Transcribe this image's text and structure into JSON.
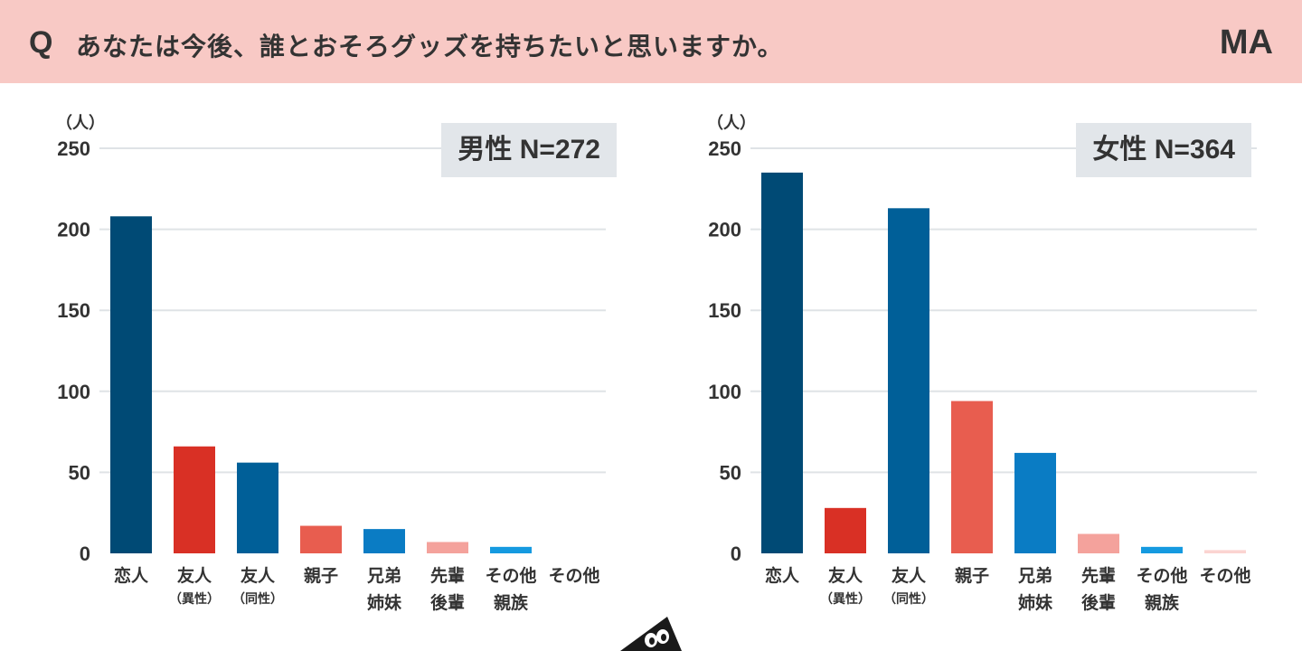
{
  "header": {
    "q_mark": "Q",
    "question": "あなたは今後、誰とおそろグッズを持ちたいと思いますか。",
    "answer_type": "MA"
  },
  "chart_data": [
    {
      "type": "bar",
      "title": "男性 N=272",
      "unit_label": "（人）",
      "categories": [
        {
          "line1": "恋人",
          "line2": ""
        },
        {
          "line1": "友人",
          "line2": "（異性）"
        },
        {
          "line1": "友人",
          "line2": "（同性）"
        },
        {
          "line1": "親子",
          "line2": ""
        },
        {
          "line1": "兄弟",
          "line2": "姉妹"
        },
        {
          "line1": "先輩",
          "line2": "後輩"
        },
        {
          "line1": "その他",
          "line2": "親族"
        },
        {
          "line1": "その他",
          "line2": ""
        }
      ],
      "values": [
        208,
        66,
        56,
        17,
        15,
        7,
        4,
        0
      ],
      "colors": [
        "#004a75",
        "#d93025",
        "#005f98",
        "#e85d4f",
        "#0a7cc4",
        "#f4a29c",
        "#159ae0",
        "#fbd4d1"
      ],
      "ylim": [
        0,
        250
      ],
      "yticks": [
        0,
        50,
        100,
        150,
        200,
        250
      ],
      "grid": true
    },
    {
      "type": "bar",
      "title": "女性 N=364",
      "unit_label": "（人）",
      "categories": [
        {
          "line1": "恋人",
          "line2": ""
        },
        {
          "line1": "友人",
          "line2": "（異性）"
        },
        {
          "line1": "友人",
          "line2": "（同性）"
        },
        {
          "line1": "親子",
          "line2": ""
        },
        {
          "line1": "兄弟",
          "line2": "姉妹"
        },
        {
          "line1": "先輩",
          "line2": "後輩"
        },
        {
          "line1": "その他",
          "line2": "親族"
        },
        {
          "line1": "その他",
          "line2": ""
        }
      ],
      "values": [
        235,
        28,
        213,
        94,
        62,
        12,
        4,
        2
      ],
      "colors": [
        "#004a75",
        "#d93025",
        "#005f98",
        "#e85d4f",
        "#0a7cc4",
        "#f4a29c",
        "#159ae0",
        "#fbd4d1"
      ],
      "ylim": [
        0,
        250
      ],
      "yticks": [
        0,
        50,
        100,
        150,
        200,
        250
      ],
      "grid": true
    }
  ]
}
